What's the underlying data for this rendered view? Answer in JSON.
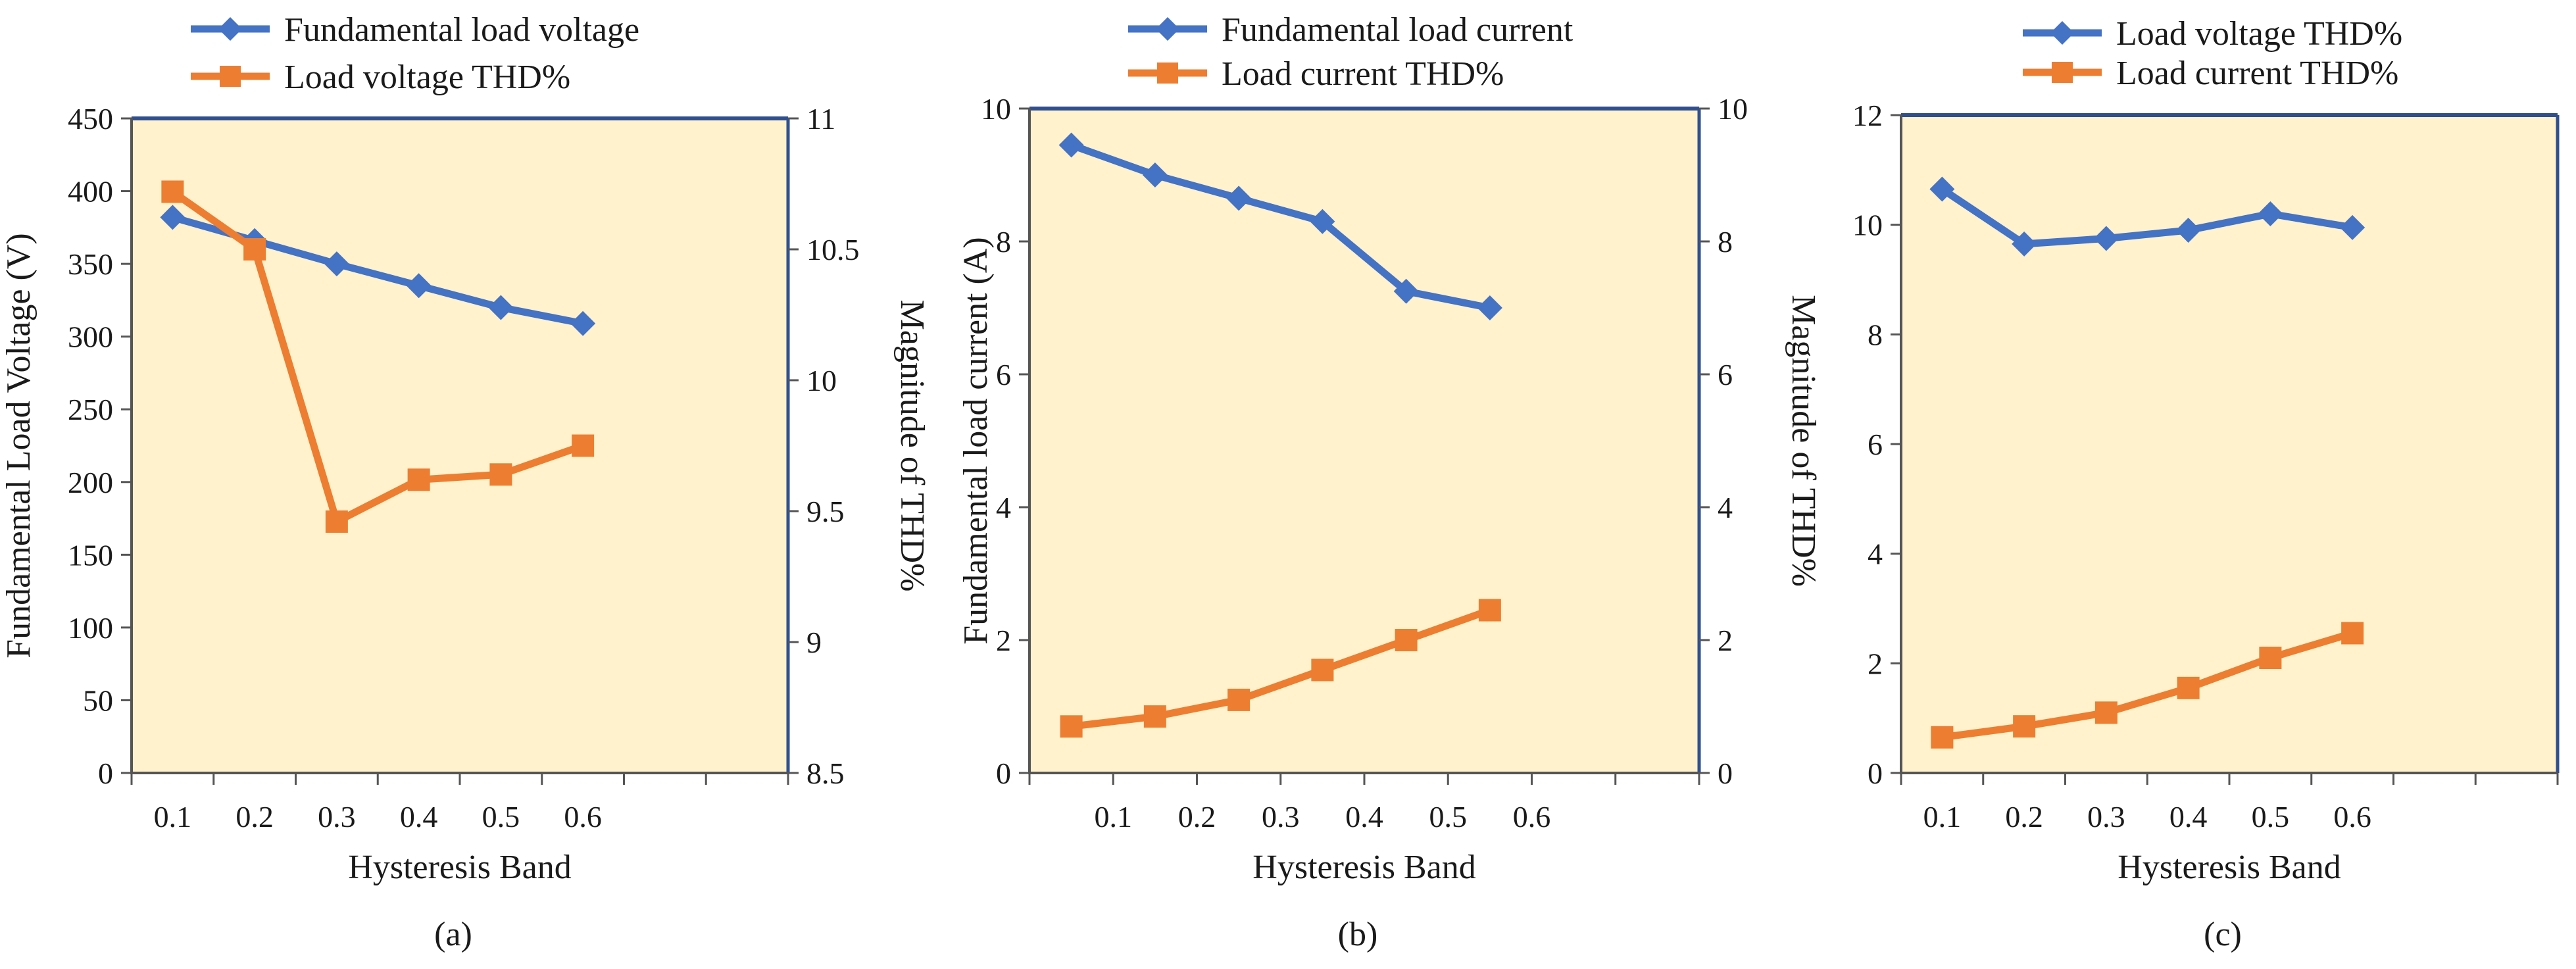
{
  "colors": {
    "blue": "#4472C4",
    "orange": "#ED7D31",
    "plot_bg": "#FFF2CC",
    "frame": "#2F4F8F"
  },
  "chart_data": [
    {
      "type": "line",
      "caption": "(a)",
      "xlabel": "Hysteresis Band",
      "ylabel": "Fundamental  Load Voltage (V)",
      "y2label": "Magnitude of THD%",
      "x_ticks": [
        "0.1",
        "0.2",
        "0.3",
        "0.4",
        "0.5",
        "0.6"
      ],
      "ylim": [
        0,
        450
      ],
      "y_ticks": [
        "0",
        "50",
        "100",
        "150",
        "200",
        "250",
        "300",
        "350",
        "400",
        "450"
      ],
      "y2lim": [
        8.5,
        11
      ],
      "y2_ticks": [
        "8.5",
        "9",
        "9.5",
        "10",
        "10.5",
        "11"
      ],
      "grid": false,
      "legend_position": "top",
      "series": [
        {
          "name": "Fundamental load voltage",
          "axis": "left",
          "color": "#4472C4",
          "marker": "diamond",
          "x": [
            0.1,
            0.2,
            0.3,
            0.4,
            0.5,
            0.6
          ],
          "values": [
            382,
            366,
            350,
            335,
            320,
            309
          ]
        },
        {
          "name": "Load  voltage  THD%",
          "axis": "right",
          "color": "#ED7D31",
          "marker": "square",
          "x": [
            0.1,
            0.2,
            0.3,
            0.4,
            0.5,
            0.6
          ],
          "values": [
            10.72,
            10.5,
            9.46,
            9.62,
            9.64,
            9.75
          ]
        }
      ]
    },
    {
      "type": "line",
      "caption": "(b)",
      "xlabel": "Hysteresis Band",
      "ylabel": "Fundamental load current (A)",
      "y2label": "Magnitude of THD%",
      "x_ticks": [
        "0.1",
        "0.2",
        "0.3",
        "0.4",
        "0.5",
        "0.6"
      ],
      "ylim": [
        0,
        10
      ],
      "y_ticks": [
        "0",
        "2",
        "4",
        "6",
        "8",
        "10"
      ],
      "y2lim": [
        0,
        10
      ],
      "y2_ticks": [
        "0",
        "2",
        "4",
        "6",
        "8",
        "10"
      ],
      "grid": false,
      "legend_position": "top",
      "series": [
        {
          "name": "Fundamental load current",
          "axis": "left",
          "color": "#4472C4",
          "marker": "diamond",
          "x": [
            0.05,
            0.15,
            0.25,
            0.35,
            0.45,
            0.55
          ],
          "values": [
            9.45,
            9.0,
            8.65,
            8.3,
            7.25,
            7.0
          ]
        },
        {
          "name": "Load  current  THD%",
          "axis": "right",
          "color": "#ED7D31",
          "marker": "square",
          "x": [
            0.05,
            0.15,
            0.25,
            0.35,
            0.45,
            0.55
          ],
          "values": [
            0.7,
            0.85,
            1.1,
            1.55,
            2.0,
            2.45
          ]
        }
      ]
    },
    {
      "type": "line",
      "caption": "(c)",
      "xlabel": "Hysteresis Band",
      "x_ticks": [
        "0.1",
        "0.2",
        "0.3",
        "0.4",
        "0.5",
        "0.6"
      ],
      "ylim": [
        0,
        12
      ],
      "y_ticks": [
        "0",
        "2",
        "4",
        "6",
        "8",
        "10",
        "12"
      ],
      "grid": false,
      "legend_position": "top",
      "series": [
        {
          "name": "Load  voltage THD%",
          "axis": "left",
          "color": "#4472C4",
          "marker": "diamond",
          "x": [
            0.1,
            0.2,
            0.3,
            0.4,
            0.5,
            0.6
          ],
          "values": [
            10.65,
            9.65,
            9.75,
            9.9,
            10.2,
            9.95
          ]
        },
        {
          "name": "Load  current THD%",
          "axis": "left",
          "color": "#ED7D31",
          "marker": "square",
          "x": [
            0.1,
            0.2,
            0.3,
            0.4,
            0.5,
            0.6
          ],
          "values": [
            0.65,
            0.85,
            1.1,
            1.55,
            2.1,
            2.55
          ]
        }
      ]
    }
  ]
}
